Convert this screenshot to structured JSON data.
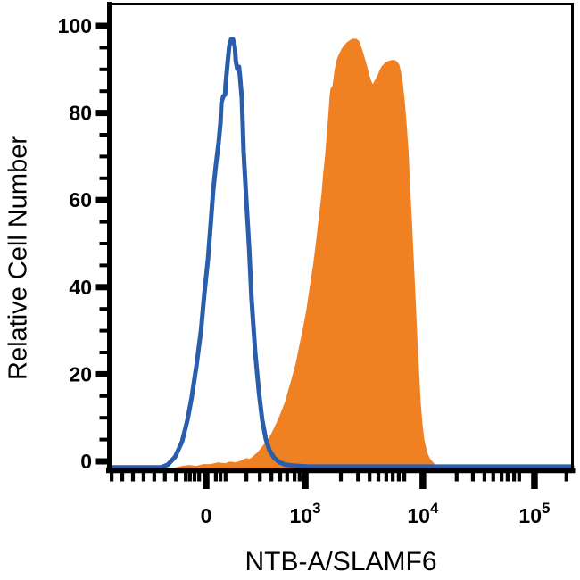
{
  "labels": {
    "y_title": "Relative Cell Number",
    "x_title": "NTB-A/SLAMF6"
  },
  "colors": {
    "axis": "#000000",
    "tick_text": "#000000",
    "control_line": "#2A5DAB",
    "stained_fill": "#F08122"
  },
  "chart_data": {
    "type": "area",
    "xlabel": "NTB-A/SLAMF6",
    "ylabel": "Relative Cell Number",
    "x_scale": "biexponential (linear near 0, log decades 10^3 to 10^5)",
    "y_scale": "linear",
    "y_range": [
      0,
      105
    ],
    "grid": false,
    "legend": "none",
    "y_axis": {
      "major_tick_values": [
        0,
        20,
        40,
        60,
        80,
        100
      ],
      "major_tick_labels": [
        "0",
        "20",
        "40",
        "60",
        "80",
        "100"
      ],
      "minor_tick_step": 5
    },
    "x_axis": {
      "major_ticks": [
        {
          "label": "0",
          "base": "0",
          "exp": "",
          "pos": 0.21
        },
        {
          "label": "10^3",
          "base": "10",
          "exp": "3",
          "pos": 0.424
        },
        {
          "label": "10^4",
          "base": "10",
          "exp": "4",
          "pos": 0.678
        },
        {
          "label": "10^5",
          "base": "10",
          "exp": "5",
          "pos": 0.919
        }
      ],
      "minor_tick_pos": [
        0.006,
        0.029,
        0.052,
        0.075,
        0.098,
        0.121,
        0.145,
        0.166,
        0.175,
        0.185,
        0.195,
        0.231,
        0.241,
        0.252,
        0.297,
        0.326,
        0.351,
        0.37,
        0.385,
        0.401,
        0.412,
        0.501,
        0.538,
        0.563,
        0.582,
        0.599,
        0.613,
        0.626,
        0.638,
        0.751,
        0.786,
        0.811,
        0.83,
        0.848,
        0.861,
        0.875,
        0.886,
        0.988
      ]
    },
    "series": [
      {
        "name": "filled orange histogram (stained, NTB-A/SLAMF6)",
        "style": "filled",
        "color": "#F08122",
        "peak": {
          "x_pos": 0.53,
          "value": 97
        },
        "points": [
          [
            0.143,
            -1.6
          ],
          [
            0.158,
            -1.2
          ],
          [
            0.173,
            -1.0
          ],
          [
            0.189,
            -1.2
          ],
          [
            0.204,
            -0.8
          ],
          [
            0.22,
            -0.8
          ],
          [
            0.235,
            -0.4
          ],
          [
            0.251,
            -0.6
          ],
          [
            0.262,
            -0.2
          ],
          [
            0.274,
            -0.4
          ],
          [
            0.285,
            0.0
          ],
          [
            0.297,
            0.6
          ],
          [
            0.304,
            0.4
          ],
          [
            0.312,
            1.0
          ],
          [
            0.32,
            1.8
          ],
          [
            0.328,
            2.7
          ],
          [
            0.335,
            3.7
          ],
          [
            0.343,
            4.7
          ],
          [
            0.351,
            6.1
          ],
          [
            0.358,
            7.6
          ],
          [
            0.366,
            9.4
          ],
          [
            0.374,
            11.5
          ],
          [
            0.382,
            13.7
          ],
          [
            0.389,
            16.4
          ],
          [
            0.397,
            19.3
          ],
          [
            0.405,
            22.5
          ],
          [
            0.412,
            26.2
          ],
          [
            0.42,
            30.3
          ],
          [
            0.428,
            34.8
          ],
          [
            0.435,
            40.0
          ],
          [
            0.443,
            45.5
          ],
          [
            0.449,
            50.6
          ],
          [
            0.455,
            56.1
          ],
          [
            0.461,
            61.9
          ],
          [
            0.464,
            65.8
          ],
          [
            0.468,
            69.9
          ],
          [
            0.472,
            75.2
          ],
          [
            0.476,
            80.5
          ],
          [
            0.478,
            83.8
          ],
          [
            0.48,
            85.5
          ],
          [
            0.484,
            86.1
          ],
          [
            0.486,
            87.5
          ],
          [
            0.489,
            90.0
          ],
          [
            0.493,
            92.0
          ],
          [
            0.497,
            93.2
          ],
          [
            0.503,
            94.5
          ],
          [
            0.509,
            95.5
          ],
          [
            0.515,
            96.1
          ],
          [
            0.52,
            96.5
          ],
          [
            0.526,
            96.9
          ],
          [
            0.534,
            96.9
          ],
          [
            0.54,
            96.3
          ],
          [
            0.543,
            95.3
          ],
          [
            0.547,
            94.1
          ],
          [
            0.551,
            92.6
          ],
          [
            0.555,
            91.2
          ],
          [
            0.559,
            89.5
          ],
          [
            0.563,
            87.9
          ],
          [
            0.567,
            86.9
          ],
          [
            0.57,
            86.3
          ],
          [
            0.574,
            87.1
          ],
          [
            0.578,
            87.9
          ],
          [
            0.582,
            88.7
          ],
          [
            0.586,
            89.8
          ],
          [
            0.59,
            90.6
          ],
          [
            0.594,
            91.0
          ],
          [
            0.599,
            91.6
          ],
          [
            0.605,
            91.8
          ],
          [
            0.611,
            92.0
          ],
          [
            0.617,
            92.0
          ],
          [
            0.622,
            91.6
          ],
          [
            0.626,
            91.0
          ],
          [
            0.63,
            89.1
          ],
          [
            0.634,
            86.3
          ],
          [
            0.638,
            82.2
          ],
          [
            0.642,
            76.8
          ],
          [
            0.646,
            70.7
          ],
          [
            0.649,
            63.5
          ],
          [
            0.653,
            55.3
          ],
          [
            0.657,
            46.1
          ],
          [
            0.661,
            36.9
          ],
          [
            0.665,
            27.7
          ],
          [
            0.669,
            19.5
          ],
          [
            0.672,
            13.3
          ],
          [
            0.676,
            8.4
          ],
          [
            0.68,
            4.9
          ],
          [
            0.686,
            2.0
          ],
          [
            0.692,
            0.6
          ],
          [
            0.698,
            -0.2
          ],
          [
            0.703,
            -0.8
          ],
          [
            0.709,
            -1.2
          ],
          [
            0.717,
            -1.6
          ],
          [
            0.725,
            -1.8
          ]
        ]
      },
      {
        "name": "open blue histogram (control)",
        "style": "open",
        "color": "#2A5DAB",
        "peak": {
          "x_pos": 0.266,
          "value": 97
        },
        "points": [
          [
            0.0,
            -1.4
          ],
          [
            0.112,
            -1.4
          ],
          [
            0.127,
            -0.8
          ],
          [
            0.143,
            1.0
          ],
          [
            0.158,
            4.5
          ],
          [
            0.17,
            9.6
          ],
          [
            0.179,
            14.8
          ],
          [
            0.189,
            21.9
          ],
          [
            0.199,
            30.1
          ],
          [
            0.206,
            38.3
          ],
          [
            0.214,
            46.5
          ],
          [
            0.22,
            54.7
          ],
          [
            0.225,
            61.9
          ],
          [
            0.231,
            68.0
          ],
          [
            0.237,
            73.2
          ],
          [
            0.241,
            77.7
          ],
          [
            0.243,
            82.4
          ],
          [
            0.247,
            83.8
          ],
          [
            0.251,
            84.2
          ],
          [
            0.252,
            86.5
          ],
          [
            0.256,
            91.2
          ],
          [
            0.26,
            95.3
          ],
          [
            0.264,
            96.9
          ],
          [
            0.268,
            96.9
          ],
          [
            0.272,
            95.3
          ],
          [
            0.274,
            92.0
          ],
          [
            0.277,
            90.2
          ],
          [
            0.281,
            90.6
          ],
          [
            0.283,
            88.5
          ],
          [
            0.287,
            83.4
          ],
          [
            0.291,
            71.1
          ],
          [
            0.297,
            59.8
          ],
          [
            0.303,
            48.6
          ],
          [
            0.308,
            37.3
          ],
          [
            0.316,
            25.0
          ],
          [
            0.324,
            15.8
          ],
          [
            0.331,
            9.6
          ],
          [
            0.339,
            5.1
          ],
          [
            0.347,
            2.5
          ],
          [
            0.357,
            0.8
          ],
          [
            0.368,
            -0.2
          ],
          [
            0.382,
            -0.8
          ],
          [
            0.401,
            -1.0
          ],
          [
            0.43,
            -1.2
          ],
          [
            1.0,
            -1.2
          ]
        ]
      }
    ]
  }
}
